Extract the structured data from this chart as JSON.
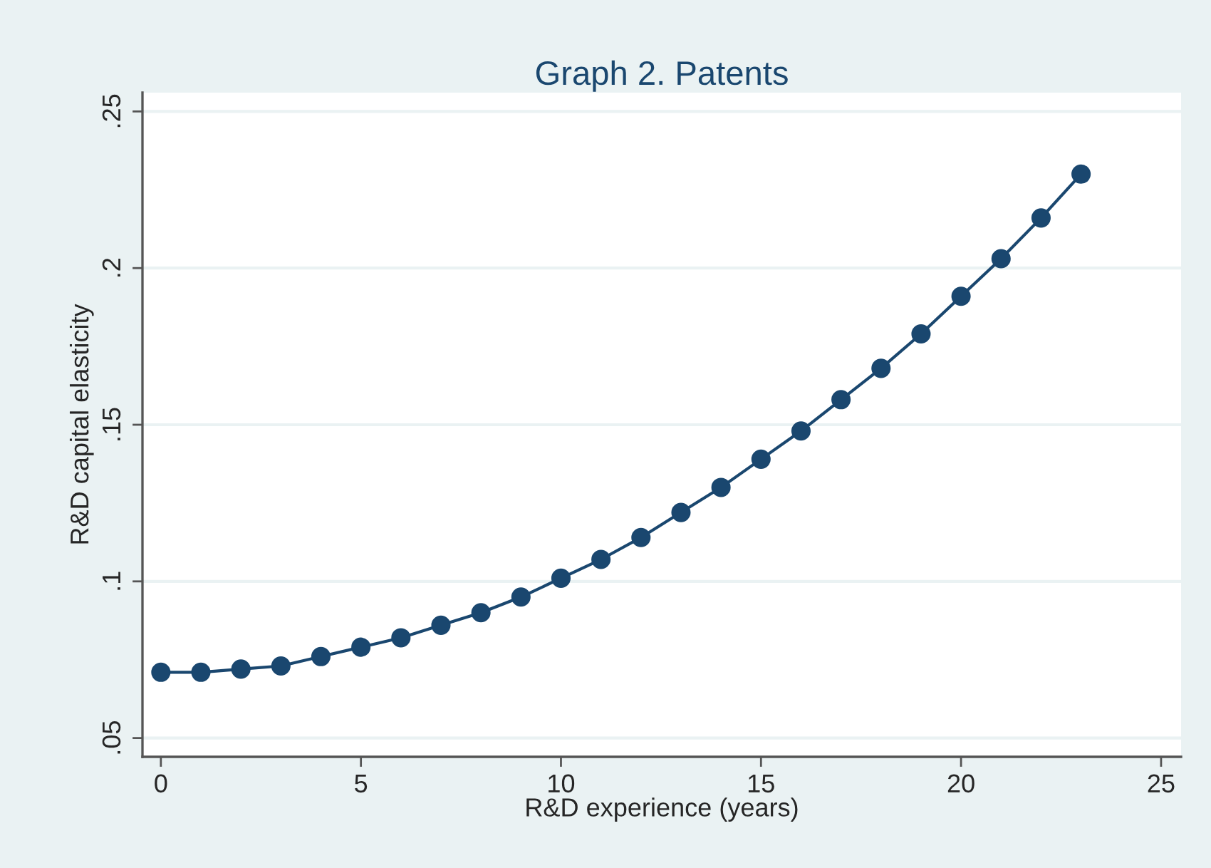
{
  "chart_data": {
    "type": "line",
    "title": "Graph 2. Patents",
    "xlabel": "R&D experience (years)",
    "ylabel": "R&D capital elasticity",
    "x": [
      0,
      1,
      2,
      3,
      4,
      5,
      6,
      7,
      8,
      9,
      10,
      11,
      12,
      13,
      14,
      15,
      16,
      17,
      18,
      19,
      20,
      21,
      22,
      23
    ],
    "series": [
      {
        "color": "#1a476f",
        "values": [
          0.071,
          0.071,
          0.072,
          0.073,
          0.076,
          0.079,
          0.082,
          0.086,
          0.09,
          0.095,
          0.101,
          0.107,
          0.114,
          0.122,
          0.13,
          0.139,
          0.148,
          0.158,
          0.168,
          0.179,
          0.191,
          0.203,
          0.216,
          0.23
        ]
      }
    ],
    "xlim": [
      -0.46,
      25.5
    ],
    "xticks": [
      0,
      5,
      10,
      15,
      20,
      25
    ],
    "ylim": [
      0.044,
      0.256
    ],
    "yticks": [
      {
        "value": 0.05,
        "label": ".05"
      },
      {
        "value": 0.1,
        "label": ".1"
      },
      {
        "value": 0.15,
        "label": ".15"
      },
      {
        "value": 0.2,
        "label": ".2"
      },
      {
        "value": 0.25,
        "label": ".25"
      }
    ],
    "grid": "y",
    "marker": "circle",
    "line_style": "solid"
  }
}
